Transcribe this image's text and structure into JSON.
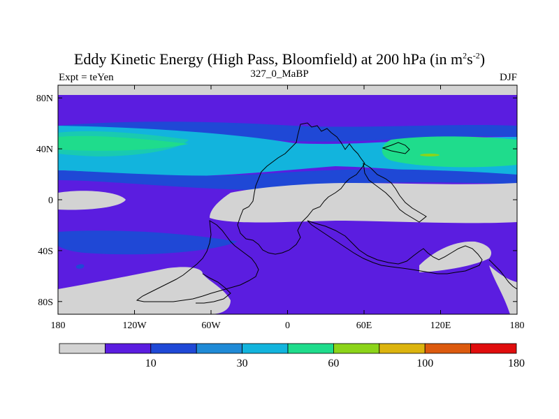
{
  "title": {
    "prefix": "Eddy Kinetic Energy (High Pass, Bloomfield) at 200 hPa (in m",
    "sup1": "2",
    "mid": "s",
    "sup2": "-2",
    "suffix": ")"
  },
  "subtitle": "327_0_MaBP",
  "left_label": "Expt = teYen",
  "right_label": "DJF",
  "colors": {
    "land_gray": "#d3d3d3",
    "levels": [
      "#d3d3d3",
      "#5b1de0",
      "#1f48d6",
      "#1f8ad6",
      "#12b4dd",
      "#1fdc8c",
      "#8cd41a",
      "#dcb40e",
      "#dc5a0e",
      "#e00d0d"
    ]
  },
  "chart_data": {
    "type": "heatmap",
    "x_ticks": [
      "180",
      "120W",
      "60W",
      "0",
      "60E",
      "120E",
      "180"
    ],
    "x_tick_values": [
      -180,
      -120,
      -60,
      0,
      60,
      120,
      180
    ],
    "y_ticks": [
      "80N",
      "40N",
      "0",
      "40S",
      "80S"
    ],
    "y_tick_values": [
      80,
      40,
      0,
      -40,
      -80
    ],
    "xlim": [
      -180,
      180
    ],
    "ylim": [
      -90,
      90
    ],
    "colorbar": {
      "labels": [
        "10",
        "30",
        "60",
        "100",
        "180"
      ],
      "boundaries": [
        10,
        30,
        60,
        100,
        180
      ],
      "n_bins": 10
    },
    "field_bands": [
      {
        "lat_max": 90,
        "lat_min": 82,
        "level": 0
      },
      {
        "lat_max": 82,
        "lat_min": 62,
        "level": 1
      },
      {
        "lat_max": 62,
        "lat_min": 56,
        "level": 2
      },
      {
        "lat_max": 56,
        "lat_min": 22,
        "level": 4
      },
      {
        "lat_max": 48,
        "lat_min": 34,
        "level": 5
      },
      {
        "lat_max": 22,
        "lat_min": 16,
        "level": 2
      },
      {
        "lat_max": 16,
        "lat_min": -90,
        "level": 1
      }
    ]
  }
}
